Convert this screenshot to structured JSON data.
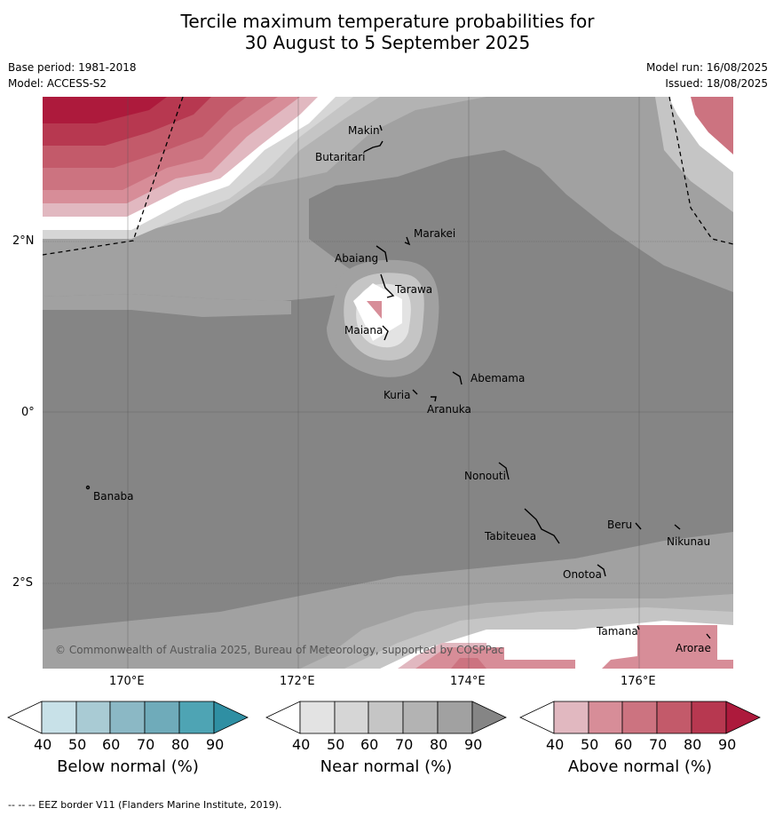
{
  "title": {
    "line1": "Tercile maximum temperature probabilities for",
    "line2": "30 August to 5 September 2025"
  },
  "meta": {
    "base_period": "Base period: 1981-2018",
    "model": "Model: ACCESS-S2",
    "model_run": "Model run: 16/08/2025",
    "issued": "Issued: 18/08/2025"
  },
  "map": {
    "copyright": "© Commonwealth of Australia 2025, Bureau of Meteorology, supported by COSPPac",
    "lat_labels": [
      "2°N",
      "0°",
      "2°S"
    ],
    "lon_labels": [
      "170°E",
      "172°E",
      "174°E",
      "176°E"
    ],
    "islands": [
      "Makin",
      "Butaritari",
      "Marakei",
      "Abaiang",
      "Tarawa",
      "Maiana",
      "Abemama",
      "Kuria",
      "Aranuka",
      "Nonouti",
      "Banaba",
      "Tabiteuea",
      "Beru",
      "Nikunau",
      "Onotoa",
      "Tamana",
      "Arorae"
    ],
    "colors": {
      "near_40": "#e3e3e3",
      "near_50": "#d6d6d6",
      "near_60": "#c5c5c5",
      "near_70": "#b3b3b3",
      "near_80": "#a1a1a1",
      "near_90": "#858585",
      "above_40": "#e1b8c0",
      "above_50": "#d78d98",
      "above_60": "#cc7380",
      "above_70": "#c35a6a",
      "above_80": "#b73850",
      "above_90": "#ad1a3c",
      "below_40": "#c8e1e8",
      "below_50": "#a9cbd4",
      "below_60": "#8bb8c5",
      "below_70": "#6fabba",
      "below_80": "#4ea4b4",
      "below_90": "#2f8fa3"
    }
  },
  "colorbars": {
    "ticks": [
      "40",
      "50",
      "60",
      "70",
      "80",
      "90"
    ],
    "below_title": "Below normal (%)",
    "near_title": "Near normal (%)",
    "above_title": "Above normal (%)"
  },
  "footer": "--  --  -- EEZ border V11 (Flanders Marine Institute, 2019)."
}
